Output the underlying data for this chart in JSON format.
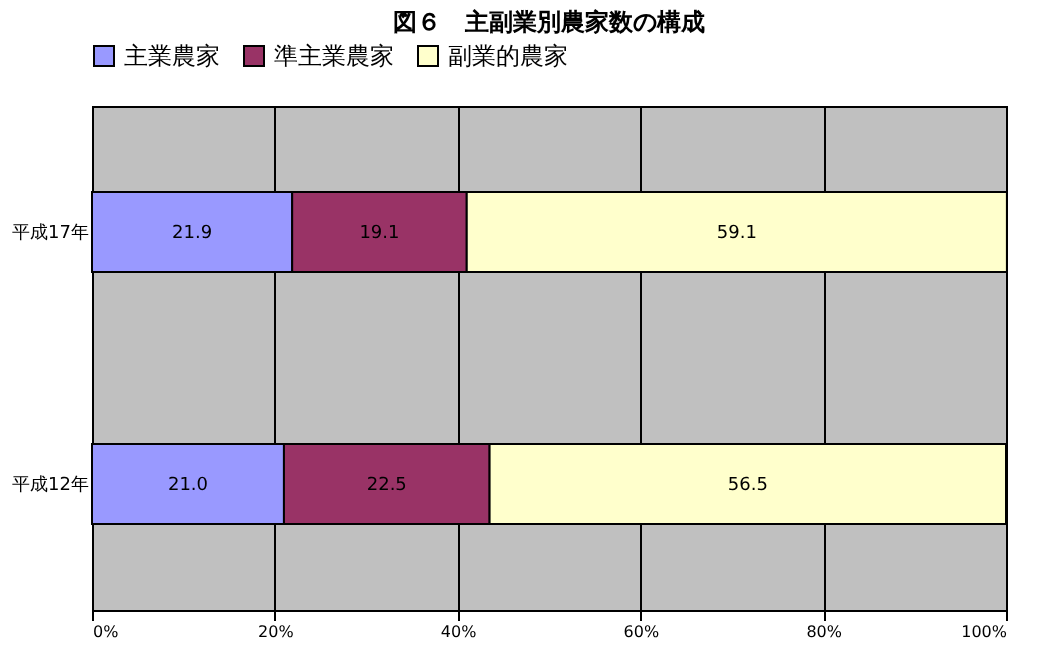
{
  "chart_data": {
    "type": "bar",
    "title": "図６　主副業別農家数の構成",
    "orientation": "horizontal",
    "stacked": true,
    "categories": [
      "平成17年",
      "平成12年"
    ],
    "series": [
      {
        "name": "主業農家",
        "color": "#9999ff",
        "values": [
          21.9,
          21.0
        ],
        "value_labels": [
          "21.9",
          "21.0"
        ]
      },
      {
        "name": "準主業農家",
        "color": "#993366",
        "values": [
          19.1,
          22.5
        ],
        "value_labels": [
          "19.1",
          "22.5"
        ]
      },
      {
        "name": "副業的農家",
        "color": "#ffffcc",
        "values": [
          59.1,
          56.5
        ],
        "value_labels": [
          "59.1",
          "56.5"
        ]
      }
    ],
    "xlim": [
      0,
      100
    ],
    "xticks": [
      {
        "value": 0,
        "label": "0%"
      },
      {
        "value": 20,
        "label": "20%"
      },
      {
        "value": 40,
        "label": "40%"
      },
      {
        "value": 60,
        "label": "60%"
      },
      {
        "value": 80,
        "label": "80%"
      },
      {
        "value": 100,
        "label": "100%"
      }
    ],
    "grid": "x",
    "legend": "top"
  }
}
